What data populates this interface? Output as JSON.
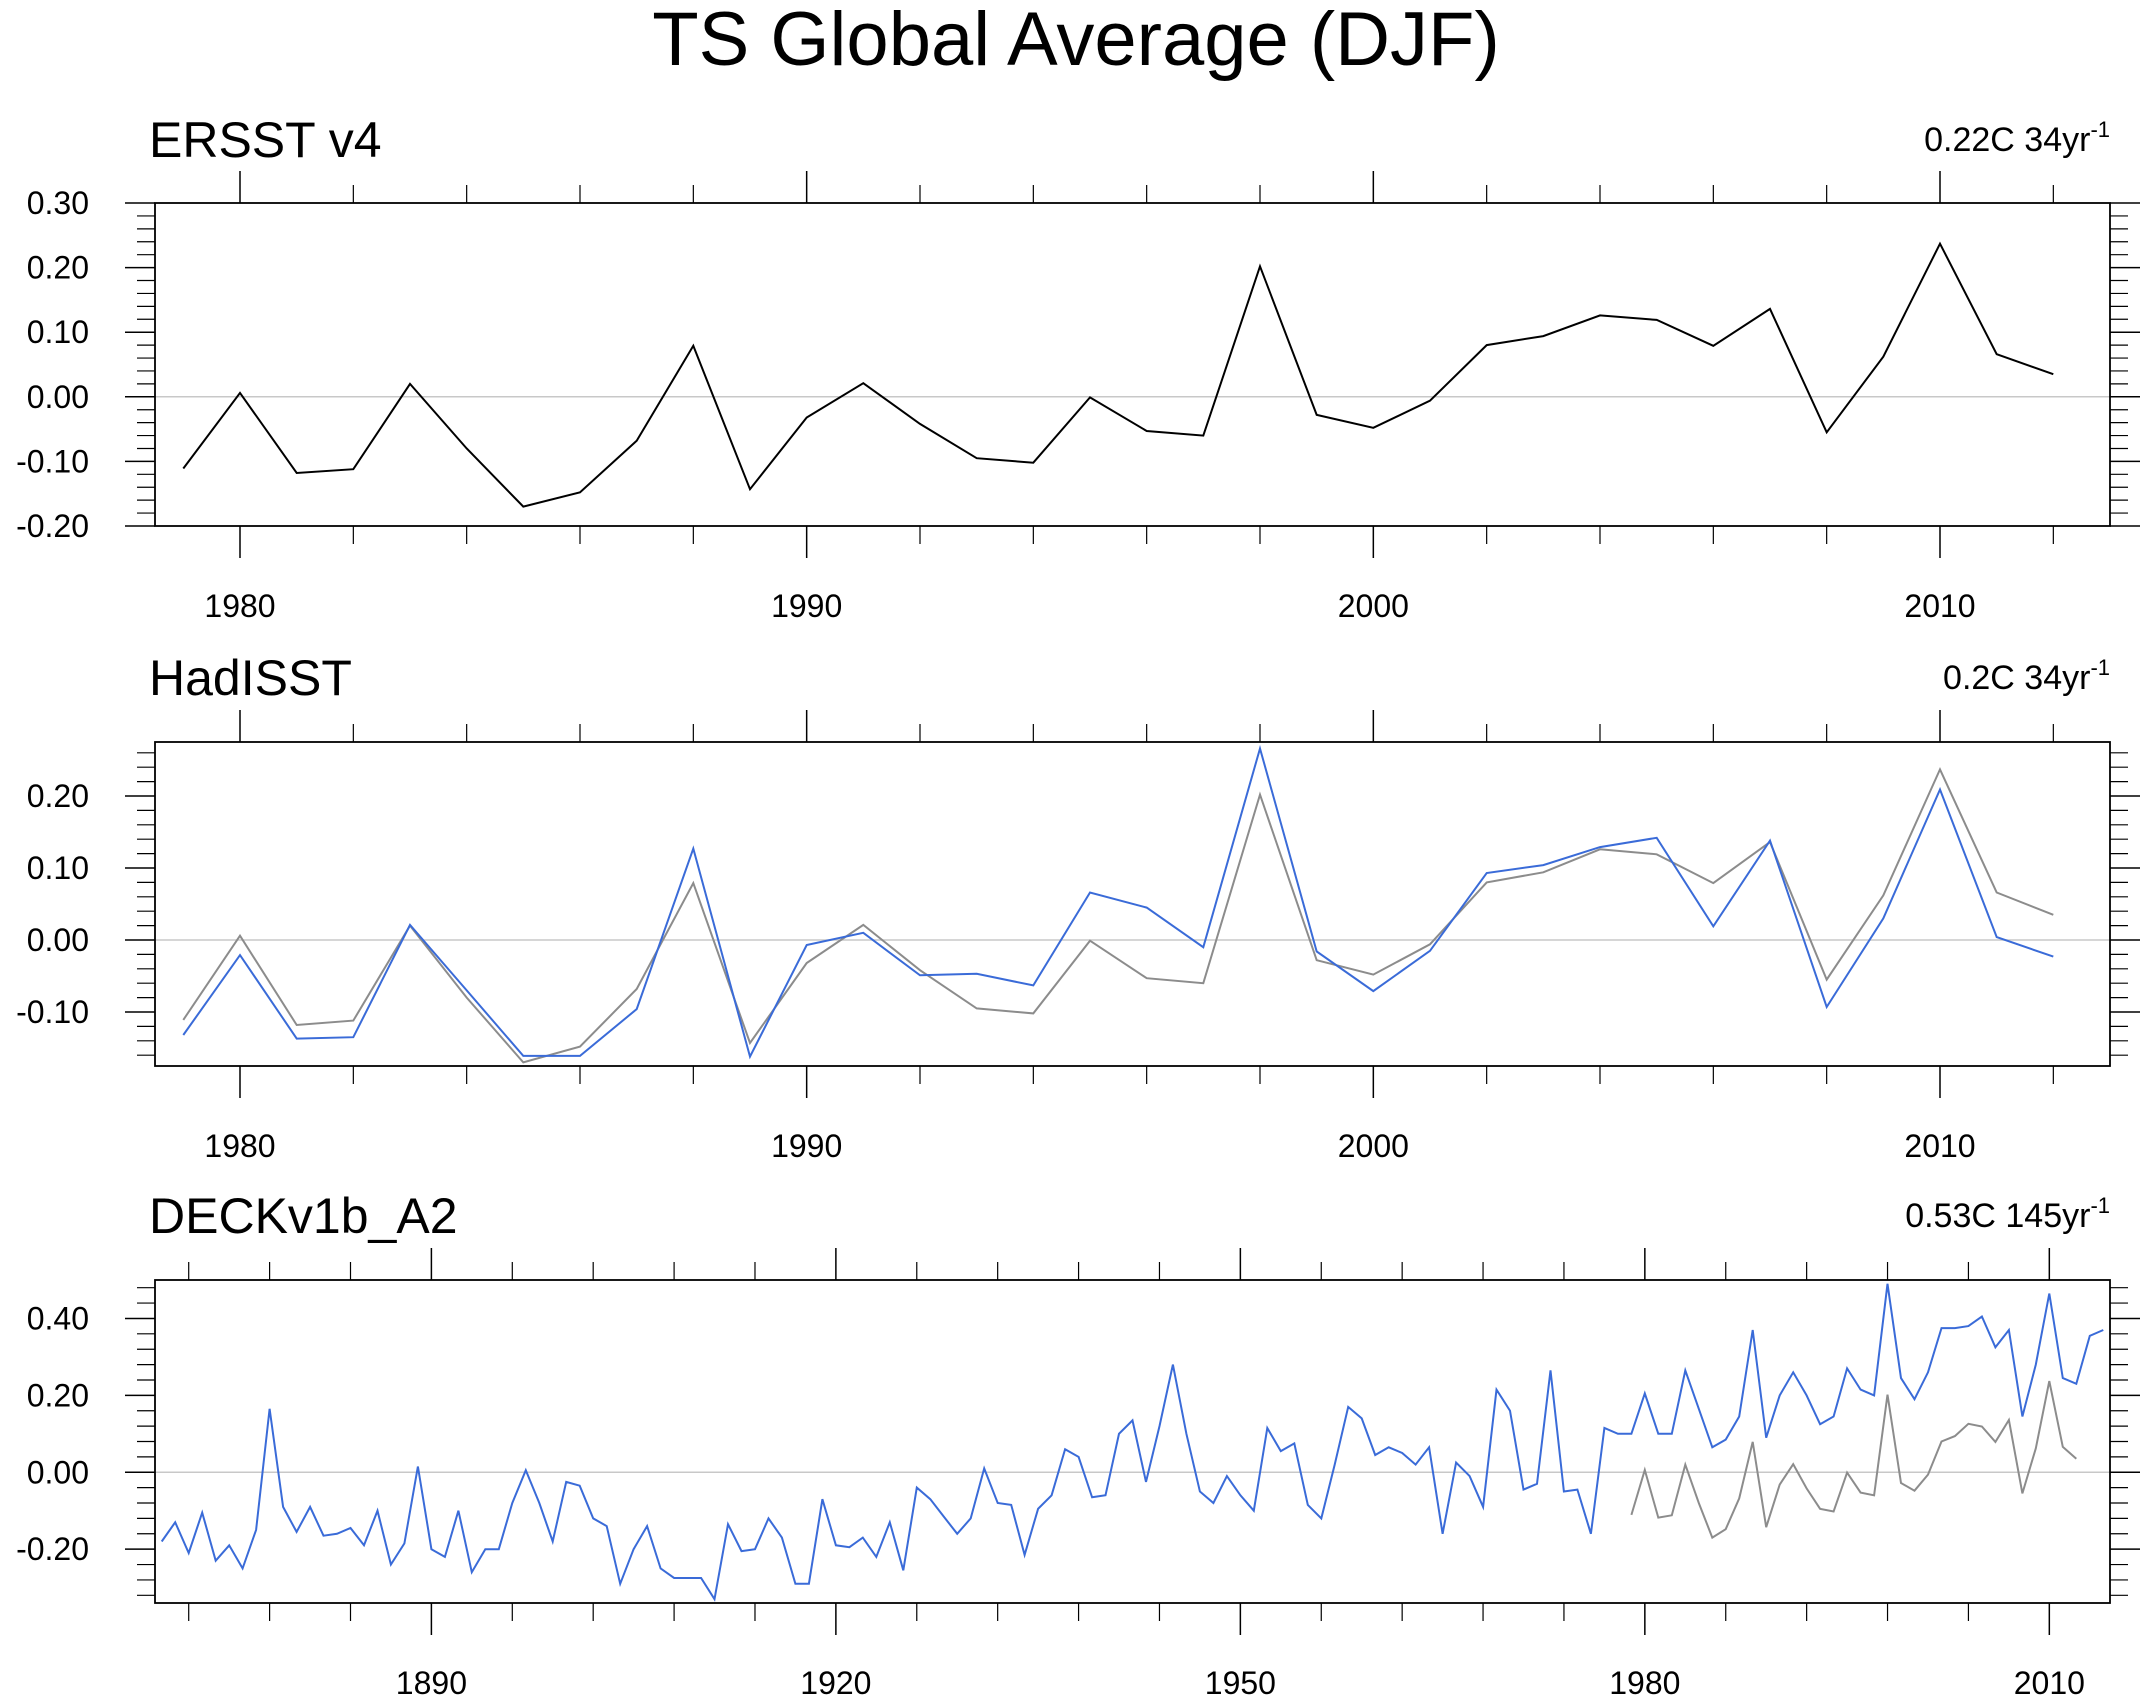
{
  "figure": {
    "title": "TS Global Average (DJF)"
  },
  "chart_data": [
    {
      "type": "line",
      "title": "ERSST v4",
      "trend_value": "0.22C 34yr",
      "trend_exponent": "-1",
      "xlim": [
        1978.5,
        2013
      ],
      "ylim": [
        -0.2,
        0.3
      ],
      "x_ticks": [
        1980,
        1990,
        2000,
        2010
      ],
      "y_ticks": [
        0.3,
        0.2,
        0.1,
        0.0,
        -0.1,
        -0.2
      ],
      "y_tick_labels": [
        "0.30",
        "0.20",
        "0.10",
        "0.00",
        "-0.10",
        "-0.20"
      ],
      "zero_line": true,
      "series": [
        {
          "color": "#000000",
          "x": [
            1979,
            1980,
            1981,
            1982,
            1983,
            1984,
            1985,
            1986,
            1987,
            1988,
            1989,
            1990,
            1991,
            1992,
            1993,
            1994,
            1995,
            1996,
            1997,
            1998,
            1999,
            2000,
            2001,
            2002,
            2003,
            2004,
            2005,
            2006,
            2007,
            2008,
            2009,
            2010,
            2011,
            2012
          ],
          "y": [
            -0.111,
            0.006,
            -0.118,
            -0.112,
            0.02,
            -0.08,
            -0.17,
            -0.148,
            -0.068,
            0.079,
            -0.143,
            -0.032,
            0.021,
            -0.042,
            -0.095,
            -0.102,
            -0.001,
            -0.053,
            -0.06,
            0.202,
            -0.028,
            -0.048,
            -0.006,
            0.08,
            0.094,
            0.126,
            0.119,
            0.079,
            0.136,
            -0.055,
            0.062,
            0.237,
            0.066,
            0.035
          ]
        }
      ]
    },
    {
      "type": "line",
      "title": "HadISST",
      "trend_value": "0.2C 34yr",
      "trend_exponent": "-1",
      "xlim": [
        1978.5,
        2013
      ],
      "ylim": [
        -0.175,
        0.275
      ],
      "x_ticks": [
        1980,
        1990,
        2000,
        2010
      ],
      "y_ticks": [
        0.2,
        0.1,
        0.0,
        -0.1
      ],
      "y_tick_labels": [
        "0.20",
        "0.10",
        "0.00",
        "-0.10"
      ],
      "zero_line": true,
      "series": [
        {
          "color": "#3a6bd8",
          "x": [
            1979,
            1980,
            1981,
            1982,
            1983,
            1984,
            1985,
            1986,
            1987,
            1988,
            1989,
            1990,
            1991,
            1992,
            1993,
            1994,
            1995,
            1996,
            1997,
            1998,
            1999,
            2000,
            2001,
            2002,
            2003,
            2004,
            2005,
            2006,
            2007,
            2008,
            2009,
            2010,
            2011,
            2012
          ],
          "y": [
            -0.132,
            -0.021,
            -0.137,
            -0.135,
            0.021,
            -0.07,
            -0.161,
            -0.161,
            -0.096,
            0.127,
            -0.162,
            -0.007,
            0.01,
            -0.049,
            -0.047,
            -0.063,
            0.066,
            0.045,
            -0.01,
            0.266,
            -0.016,
            -0.071,
            -0.015,
            0.093,
            0.104,
            0.129,
            0.142,
            0.019,
            0.138,
            -0.093,
            0.03,
            0.209,
            0.004,
            -0.023
          ]
        },
        {
          "color": "#8c8c8c",
          "x": [
            1979,
            1980,
            1981,
            1982,
            1983,
            1984,
            1985,
            1986,
            1987,
            1988,
            1989,
            1990,
            1991,
            1992,
            1993,
            1994,
            1995,
            1996,
            1997,
            1998,
            1999,
            2000,
            2001,
            2002,
            2003,
            2004,
            2005,
            2006,
            2007,
            2008,
            2009,
            2010,
            2011,
            2012
          ],
          "y": [
            -0.111,
            0.006,
            -0.118,
            -0.112,
            0.02,
            -0.08,
            -0.17,
            -0.148,
            -0.068,
            0.079,
            -0.143,
            -0.032,
            0.021,
            -0.042,
            -0.095,
            -0.102,
            -0.001,
            -0.053,
            -0.06,
            0.202,
            -0.028,
            -0.048,
            -0.006,
            0.08,
            0.094,
            0.126,
            0.119,
            0.079,
            0.136,
            -0.055,
            0.062,
            0.237,
            0.066,
            0.035
          ]
        }
      ]
    },
    {
      "type": "line",
      "title": "DECKv1b_A2",
      "trend_value": "0.53C 145yr",
      "trend_exponent": "-1",
      "xlim": [
        1869.5,
        2014.5
      ],
      "ylim": [
        -0.34,
        0.5
      ],
      "x_ticks": [
        1890,
        1920,
        1950,
        1980,
        2010
      ],
      "y_ticks": [
        0.4,
        0.2,
        0.0,
        -0.2
      ],
      "y_tick_labels": [
        "0.40",
        "0.20",
        "0.00",
        "-0.20"
      ],
      "zero_line": true,
      "series": [
        {
          "color": "#3a6bd8",
          "x": [
            1870,
            1871,
            1872,
            1873,
            1874,
            1875,
            1876,
            1877,
            1878,
            1879,
            1880,
            1881,
            1882,
            1883,
            1884,
            1885,
            1886,
            1887,
            1888,
            1889,
            1890,
            1891,
            1892,
            1893,
            1894,
            1895,
            1896,
            1897,
            1898,
            1899,
            1900,
            1901,
            1902,
            1903,
            1904,
            1905,
            1906,
            1907,
            1908,
            1909,
            1910,
            1911,
            1912,
            1913,
            1914,
            1915,
            1916,
            1917,
            1918,
            1919,
            1920,
            1921,
            1922,
            1923,
            1924,
            1925,
            1926,
            1927,
            1928,
            1929,
            1930,
            1931,
            1932,
            1933,
            1934,
            1935,
            1936,
            1937,
            1938,
            1939,
            1940,
            1941,
            1942,
            1943,
            1944,
            1945,
            1946,
            1947,
            1948,
            1949,
            1950,
            1951,
            1952,
            1953,
            1954,
            1955,
            1956,
            1957,
            1958,
            1959,
            1960,
            1961,
            1962,
            1963,
            1964,
            1965,
            1966,
            1967,
            1968,
            1969,
            1970,
            1971,
            1972,
            1973,
            1974,
            1975,
            1976,
            1977,
            1978,
            1979,
            1980,
            1981,
            1982,
            1983,
            1984,
            1985,
            1986,
            1987,
            1988,
            1989,
            1990,
            1991,
            1992,
            1993,
            1994,
            1995,
            1996,
            1997,
            1998,
            1999,
            2000,
            2001,
            2002,
            2003,
            2004,
            2005,
            2006,
            2007,
            2008,
            2009,
            2010,
            2011,
            2012,
            2013,
            2014
          ],
          "y": [
            -0.18,
            -0.13,
            -0.21,
            -0.105,
            -0.23,
            -0.19,
            -0.25,
            -0.15,
            0.165,
            -0.09,
            -0.155,
            -0.09,
            -0.165,
            -0.16,
            -0.145,
            -0.19,
            -0.1,
            -0.24,
            -0.185,
            0.015,
            -0.2,
            -0.22,
            -0.1,
            -0.26,
            -0.2,
            -0.2,
            -0.08,
            0.005,
            -0.08,
            -0.18,
            -0.025,
            -0.035,
            -0.12,
            -0.14,
            -0.29,
            -0.2,
            -0.14,
            -0.25,
            -0.275,
            -0.275,
            -0.275,
            -0.33,
            -0.135,
            -0.205,
            -0.2,
            -0.12,
            -0.17,
            -0.29,
            -0.29,
            -0.07,
            -0.19,
            -0.195,
            -0.17,
            -0.22,
            -0.13,
            -0.255,
            -0.04,
            -0.07,
            -0.115,
            -0.16,
            -0.12,
            0.01,
            -0.08,
            -0.085,
            -0.215,
            -0.095,
            -0.06,
            0.06,
            0.04,
            -0.065,
            -0.06,
            0.1,
            0.135,
            -0.025,
            0.12,
            0.28,
            0.1,
            -0.05,
            -0.08,
            -0.01,
            -0.06,
            -0.1,
            0.115,
            0.055,
            0.075,
            -0.085,
            -0.12,
            0.02,
            0.17,
            0.14,
            0.045,
            0.065,
            0.05,
            0.02,
            0.065,
            -0.16,
            0.025,
            -0.01,
            -0.09,
            0.215,
            0.16,
            -0.045,
            -0.03,
            0.265,
            -0.05,
            -0.045,
            -0.16,
            0.115,
            0.1,
            0.1,
            0.205,
            0.1,
            0.1,
            0.265,
            0.165,
            0.065,
            0.085,
            0.145,
            0.37,
            0.09,
            0.2,
            0.26,
            0.2,
            0.125,
            0.145,
            0.27,
            0.215,
            0.2,
            0.49,
            0.245,
            0.19,
            0.26,
            0.375,
            0.375,
            0.38,
            0.405,
            0.325,
            0.37,
            0.145,
            0.28,
            0.465,
            0.245,
            0.23,
            0.355,
            0.37
          ]
        },
        {
          "color": "#8c8c8c",
          "x": [
            1979,
            1980,
            1981,
            1982,
            1983,
            1984,
            1985,
            1986,
            1987,
            1988,
            1989,
            1990,
            1991,
            1992,
            1993,
            1994,
            1995,
            1996,
            1997,
            1998,
            1999,
            2000,
            2001,
            2002,
            2003,
            2004,
            2005,
            2006,
            2007,
            2008,
            2009,
            2010,
            2011,
            2012
          ],
          "y": [
            -0.111,
            0.006,
            -0.118,
            -0.112,
            0.02,
            -0.08,
            -0.17,
            -0.148,
            -0.068,
            0.079,
            -0.143,
            -0.032,
            0.021,
            -0.042,
            -0.095,
            -0.102,
            -0.001,
            -0.053,
            -0.06,
            0.202,
            -0.028,
            -0.048,
            -0.006,
            0.08,
            0.094,
            0.126,
            0.119,
            0.079,
            0.136,
            -0.055,
            0.062,
            0.237,
            0.066,
            0.035
          ]
        }
      ]
    }
  ]
}
